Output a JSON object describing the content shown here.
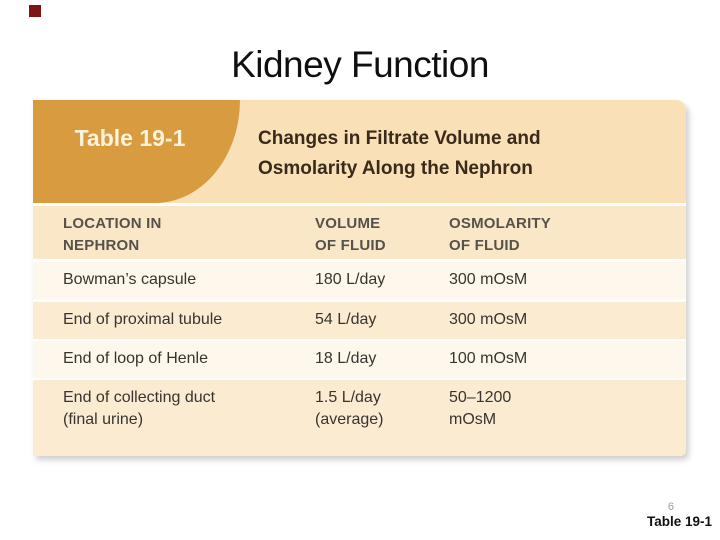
{
  "slide": {
    "title": "Kidney Function",
    "page_number": "6",
    "caption": "Table 19-1"
  },
  "table": {
    "badge": "Table 19-1",
    "heading": "Changes in Filtrate Volume and\nOsmolarity Along the Nephron",
    "columns": [
      "LOCATION IN\nNEPHRON",
      "VOLUME\nOF FLUID",
      "OSMOLARITY\nOF FLUID"
    ],
    "rows": [
      {
        "location": "Bowman’s capsule",
        "volume": "180 L/day",
        "osmolarity": "300 mOsM"
      },
      {
        "location": "End of proximal tubule",
        "volume": "54 L/day",
        "osmolarity": "300 mOsM"
      },
      {
        "location": "End of loop of Henle",
        "volume": "18 L/day",
        "osmolarity": "100 mOsM"
      },
      {
        "location": "End of collecting duct\n(final urine)",
        "volume": "1.5 L/day\n(average)",
        "osmolarity": "50–1200\nmOsM"
      }
    ],
    "colors": {
      "badge_bg": "#D89B3F",
      "band_bg": "#FAE0B6",
      "header_row_bg": "#FAE7C8",
      "row_light": "#FEF7EB",
      "row_peach": "#FAEBD1",
      "heading_text": "#3A2A1A",
      "header_text": "#56524B",
      "body_text": "#383430"
    }
  }
}
